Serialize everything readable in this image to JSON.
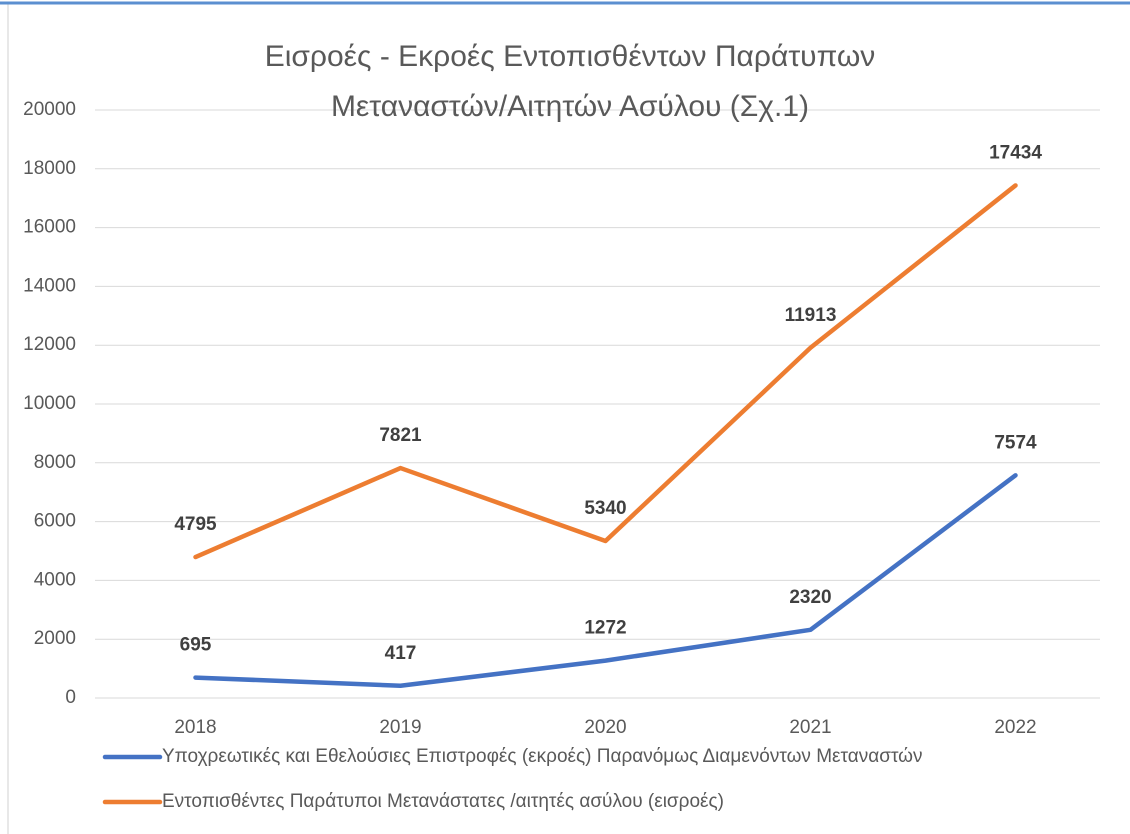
{
  "chart_data": {
    "type": "line",
    "title": "Εισροές - Εκροές Εντοπισθέντων Παράτυπων Μεταναστών/Αιτητών Ασύλου (Σχ.1)",
    "categories": [
      "2018",
      "2019",
      "2020",
      "2021",
      "2022"
    ],
    "series": [
      {
        "name": "Υποχρεωτικές και Εθελούσιες Επιστροφές (εκροές) Παρανόμως Διαμενόντων Μεταναστών",
        "color": "#4472c4",
        "values": [
          695,
          417,
          1272,
          2320,
          7574
        ]
      },
      {
        "name": "Εντοπισθέντες Παράτυποι Μετανάστατες /αιτητές ασύλου (εισροές)",
        "color": "#ed7d31",
        "values": [
          4795,
          7821,
          5340,
          11913,
          17434
        ]
      }
    ],
    "ylim": [
      0,
      20000
    ],
    "yticks": [
      0,
      2000,
      4000,
      6000,
      8000,
      10000,
      12000,
      14000,
      16000,
      18000,
      20000
    ],
    "grid": true,
    "legend": "bottom"
  }
}
